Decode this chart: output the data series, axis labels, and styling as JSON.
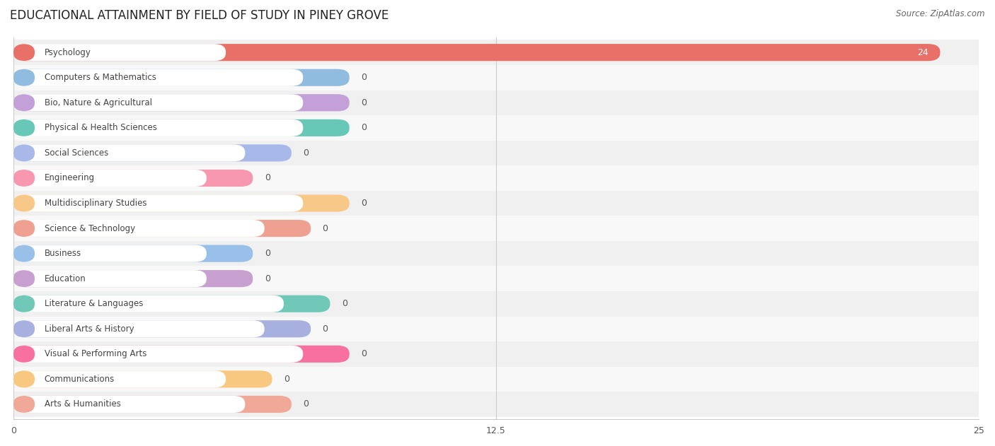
{
  "title": "EDUCATIONAL ATTAINMENT BY FIELD OF STUDY IN PINEY GROVE",
  "source": "Source: ZipAtlas.com",
  "categories": [
    "Psychology",
    "Computers & Mathematics",
    "Bio, Nature & Agricultural",
    "Physical & Health Sciences",
    "Social Sciences",
    "Engineering",
    "Multidisciplinary Studies",
    "Science & Technology",
    "Business",
    "Education",
    "Literature & Languages",
    "Liberal Arts & History",
    "Visual & Performing Arts",
    "Communications",
    "Arts & Humanities"
  ],
  "values": [
    24,
    0,
    0,
    0,
    0,
    0,
    0,
    0,
    0,
    0,
    0,
    0,
    0,
    0,
    0
  ],
  "bar_colors": [
    "#e87068",
    "#90bce0",
    "#c4a0d8",
    "#68c8b8",
    "#a8b8e8",
    "#f898b0",
    "#f8c888",
    "#f0a090",
    "#98c0e8",
    "#c8a0d0",
    "#70c8b8",
    "#a8b0e0",
    "#f870a0",
    "#f8c880",
    "#f0a898"
  ],
  "xlim": [
    0,
    25
  ],
  "xticks": [
    0,
    12.5,
    25
  ],
  "background_color": "#ffffff",
  "row_bg_even": "#f0f0f0",
  "row_bg_odd": "#f8f8f8",
  "title_fontsize": 12,
  "bar_height": 0.68,
  "label_pill_color": "#ffffff",
  "value_label_color_zero": "#555555",
  "value_label_color_nonzero": "#ffffff",
  "text_color": "#444444",
  "grid_color": "#cccccc",
  "source_color": "#666666"
}
